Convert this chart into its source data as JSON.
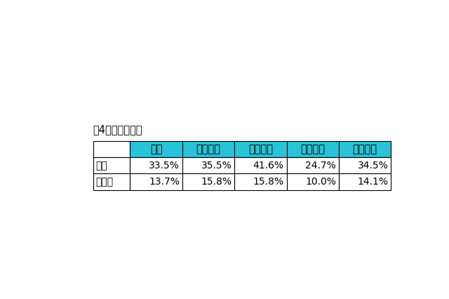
{
  "title": "、4月内々定率】",
  "header_cols": [
    "全体",
    "文系男子",
    "理系男子",
    "文系女子",
    "理系女子"
  ],
  "row_labels": [
    "はい",
    "前年比"
  ],
  "data": [
    [
      "33.5%",
      "35.5%",
      "41.6%",
      "24.7%",
      "34.5%"
    ],
    [
      "13.7%",
      "15.8%",
      "15.8%",
      "10.0%",
      "14.1%"
    ]
  ],
  "header_bg_color": "#29C3D8",
  "header_text_color": "#000000",
  "cell_bg_color": "#FFFFFF",
  "cell_text_color": "#000000",
  "row_label_bg_color": "#FFFFFF",
  "row_label_text_color": "#000000",
  "background_color": "#FFFFFF",
  "border_color": "#000000",
  "title_fontsize": 10.5,
  "cell_fontsize": 10,
  "header_fontsize": 10.5
}
